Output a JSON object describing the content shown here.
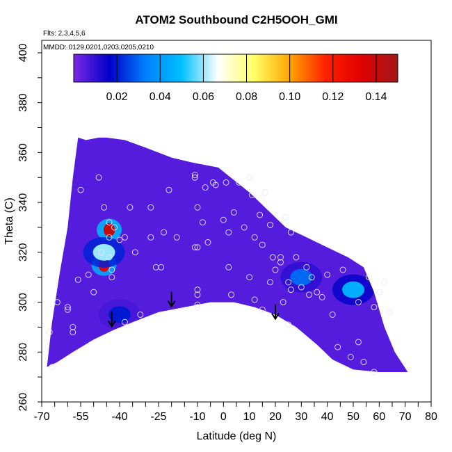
{
  "chart_data": {
    "type": "heatmap",
    "title": "ATOM2 Southbound C2H5OOH_GMI",
    "flights_note": "Flts: 2,3,4,5,6",
    "dates_note": "MMDD: 0129,0201,0203,0205,0210",
    "xlabel": "Latitude (deg N)",
    "ylabel": "Theta (C)",
    "xlim": [
      -70,
      80
    ],
    "ylim": [
      260,
      405
    ],
    "x_ticks": [
      -70,
      -55,
      -40,
      -25,
      -10,
      0,
      10,
      20,
      30,
      40,
      50,
      60,
      70,
      80
    ],
    "y_ticks": [
      260,
      280,
      300,
      320,
      340,
      360,
      380,
      400
    ],
    "colorbar": {
      "min": 0,
      "max": 0.15,
      "ticks": [
        0.02,
        0.04,
        0.06,
        0.08,
        0.1,
        0.12,
        0.14
      ],
      "tick_labels": [
        "0.02",
        "0.04",
        "0.06",
        "0.08",
        "0.10",
        "0.12",
        "0.14"
      ],
      "colors": [
        "#7a28e6",
        "#0000c8",
        "#0080ff",
        "#00c0ff",
        "#ffffff",
        "#ffff66",
        "#ffa500",
        "#ff2000",
        "#e00000",
        "#a01818"
      ]
    },
    "field_outline": [
      [
        -68,
        274
      ],
      [
        -66,
        292
      ],
      [
        -63,
        312
      ],
      [
        -60,
        330
      ],
      [
        -58,
        350
      ],
      [
        -56,
        366
      ],
      [
        -53,
        365
      ],
      [
        -48,
        366
      ],
      [
        -45,
        366
      ],
      [
        -38,
        365
      ],
      [
        -30,
        362
      ],
      [
        -20,
        358
      ],
      [
        -12,
        356
      ],
      [
        -2,
        354
      ],
      [
        10,
        344
      ],
      [
        18,
        336
      ],
      [
        24,
        330
      ],
      [
        32,
        326
      ],
      [
        40,
        322
      ],
      [
        48,
        318
      ],
      [
        54,
        314
      ],
      [
        58,
        304
      ],
      [
        62,
        290
      ],
      [
        66,
        280
      ],
      [
        71,
        272
      ],
      [
        60,
        272
      ],
      [
        50,
        273
      ],
      [
        42,
        277
      ],
      [
        36,
        283
      ],
      [
        28,
        290
      ],
      [
        20,
        295
      ],
      [
        12,
        298
      ],
      [
        4,
        300
      ],
      [
        -5,
        300
      ],
      [
        -15,
        298
      ],
      [
        -25,
        296
      ],
      [
        -35,
        292
      ],
      [
        -42,
        289
      ],
      [
        -50,
        285
      ],
      [
        -58,
        280
      ],
      [
        -64,
        276
      ]
    ],
    "background_level": 0.005,
    "features": [
      {
        "lat": -44,
        "theta": 329,
        "value": 0.14
      },
      {
        "lat": -46,
        "theta": 315,
        "value": 0.13
      },
      {
        "lat": -46,
        "theta": 320,
        "value": 0.06
      },
      {
        "lat": 50,
        "theta": 305,
        "value": 0.045
      },
      {
        "lat": 30,
        "theta": 310,
        "value": 0.03
      },
      {
        "lat": -40,
        "theta": 295,
        "value": 0.02
      }
    ],
    "arrows": [
      {
        "lat": -43,
        "theta": 290
      },
      {
        "lat": -20,
        "theta": 298
      },
      {
        "lat": 20,
        "theta": 293
      }
    ],
    "obs_points": [
      [
        -67,
        288
      ],
      [
        -66,
        274
      ],
      [
        -64,
        300
      ],
      [
        -60,
        298
      ],
      [
        -60,
        297
      ],
      [
        -58,
        288
      ],
      [
        -58,
        290
      ],
      [
        -56,
        309
      ],
      [
        -55,
        345
      ],
      [
        -52,
        311
      ],
      [
        -50,
        304
      ],
      [
        -48,
        350
      ],
      [
        -47,
        320
      ],
      [
        -46,
        338
      ],
      [
        -44,
        332
      ],
      [
        -44,
        326
      ],
      [
        -44,
        318
      ],
      [
        -43,
        313
      ],
      [
        -43,
        310
      ],
      [
        -42,
        330
      ],
      [
        -40,
        325
      ],
      [
        -38,
        292
      ],
      [
        -38,
        326
      ],
      [
        -36,
        338
      ],
      [
        -34,
        320
      ],
      [
        -32,
        295
      ],
      [
        -28,
        338
      ],
      [
        -28,
        326
      ],
      [
        -26,
        314
      ],
      [
        -24,
        314
      ],
      [
        -23,
        328
      ],
      [
        -21,
        345
      ],
      [
        -18,
        326
      ],
      [
        -11,
        350
      ],
      [
        -11,
        351
      ],
      [
        -10,
        338
      ],
      [
        -11,
        322
      ],
      [
        -10,
        322
      ],
      [
        -10,
        305
      ],
      [
        -10,
        303
      ],
      [
        -10,
        299
      ],
      [
        -10,
        298
      ],
      [
        -8,
        332
      ],
      [
        -7,
        346
      ],
      [
        -6,
        324
      ],
      [
        -4,
        348
      ],
      [
        -3,
        347
      ],
      [
        0,
        333
      ],
      [
        1,
        348
      ],
      [
        2,
        314
      ],
      [
        2,
        328
      ],
      [
        3,
        303
      ],
      [
        4,
        336
      ],
      [
        6,
        348
      ],
      [
        8,
        330
      ],
      [
        10,
        350
      ],
      [
        10,
        310
      ],
      [
        11,
        343
      ],
      [
        12,
        326
      ],
      [
        12,
        301
      ],
      [
        14,
        335
      ],
      [
        15,
        297
      ],
      [
        15,
        323
      ],
      [
        16,
        344
      ],
      [
        18,
        331
      ],
      [
        18,
        308
      ],
      [
        19,
        318
      ],
      [
        20,
        313
      ],
      [
        22,
        316
      ],
      [
        22,
        318
      ],
      [
        23,
        300
      ],
      [
        24,
        334
      ],
      [
        25,
        308
      ],
      [
        25,
        291
      ],
      [
        26,
        328
      ],
      [
        26,
        305
      ],
      [
        28,
        318
      ],
      [
        30,
        306
      ],
      [
        32,
        314
      ],
      [
        33,
        303
      ],
      [
        34,
        310
      ],
      [
        36,
        304
      ],
      [
        38,
        302
      ],
      [
        40,
        311
      ],
      [
        42,
        295
      ],
      [
        44,
        282
      ],
      [
        46,
        313
      ],
      [
        49,
        278
      ],
      [
        52,
        284
      ],
      [
        52,
        300
      ],
      [
        54,
        276
      ],
      [
        56,
        310
      ],
      [
        58,
        298
      ],
      [
        60,
        304
      ],
      [
        62,
        308
      ],
      [
        64,
        296
      ],
      [
        58,
        272
      ]
    ]
  }
}
